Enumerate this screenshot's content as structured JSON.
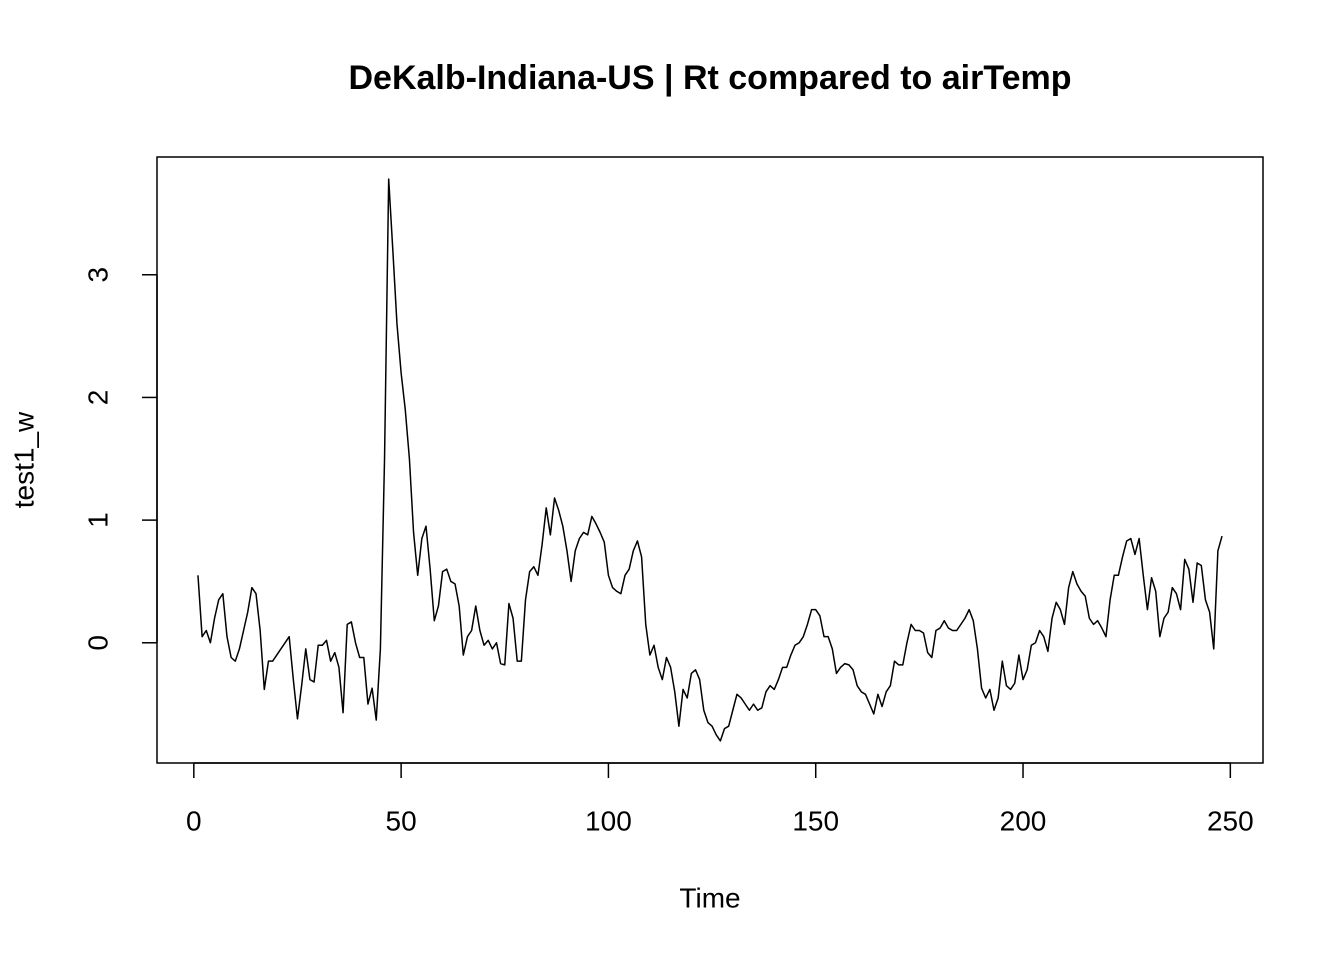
{
  "chart_data": {
    "type": "line",
    "title": "DeKalb-Indiana-US | Rt compared to airTemp",
    "xlabel": "Time",
    "ylabel": "test1_w",
    "color": "#000000",
    "x": [
      1,
      2,
      3,
      4,
      5,
      6,
      7,
      8,
      9,
      10,
      11,
      12,
      13,
      14,
      15,
      16,
      17,
      18,
      19,
      20,
      21,
      22,
      23,
      24,
      25,
      26,
      27,
      28,
      29,
      30,
      31,
      32,
      33,
      34,
      35,
      36,
      37,
      38,
      39,
      40,
      41,
      42,
      43,
      44,
      45,
      46,
      47,
      48,
      49,
      50,
      51,
      52,
      53,
      54,
      55,
      56,
      57,
      58,
      59,
      60,
      61,
      62,
      63,
      64,
      65,
      66,
      67,
      68,
      69,
      70,
      71,
      72,
      73,
      74,
      75,
      76,
      77,
      78,
      79,
      80,
      81,
      82,
      83,
      84,
      85,
      86,
      87,
      88,
      89,
      90,
      91,
      92,
      93,
      94,
      95,
      96,
      97,
      98,
      99,
      100,
      101,
      102,
      103,
      104,
      105,
      106,
      107,
      108,
      109,
      110,
      111,
      112,
      113,
      114,
      115,
      116,
      117,
      118,
      119,
      120,
      121,
      122,
      123,
      124,
      125,
      126,
      127,
      128,
      129,
      130,
      131,
      132,
      133,
      134,
      135,
      136,
      137,
      138,
      139,
      140,
      141,
      142,
      143,
      144,
      145,
      146,
      147,
      148,
      149,
      150,
      151,
      152,
      153,
      154,
      155,
      156,
      157,
      158,
      159,
      160,
      161,
      162,
      163,
      164,
      165,
      166,
      167,
      168,
      169,
      170,
      171,
      172,
      173,
      174,
      175,
      176,
      177,
      178,
      179,
      180,
      181,
      182,
      183,
      184,
      185,
      186,
      187,
      188,
      189,
      190,
      191,
      192,
      193,
      194,
      195,
      196,
      197,
      198,
      199,
      200,
      201,
      202,
      203,
      204,
      205,
      206,
      207,
      208,
      209,
      210,
      211,
      212,
      213,
      214,
      215,
      216,
      217,
      218,
      219,
      220,
      221,
      222,
      223,
      224,
      225,
      226,
      227,
      228,
      229,
      230,
      231,
      232,
      233,
      234,
      235,
      236,
      237,
      238,
      239,
      240,
      241,
      242,
      243,
      244,
      245,
      246,
      247,
      248
    ],
    "values": [
      0.55,
      0.05,
      0.1,
      0.0,
      0.2,
      0.35,
      0.4,
      0.05,
      -0.12,
      -0.15,
      -0.05,
      0.1,
      0.25,
      0.45,
      0.4,
      0.1,
      -0.38,
      -0.15,
      -0.15,
      -0.1,
      -0.05,
      0.0,
      0.05,
      -0.3,
      -0.62,
      -0.35,
      -0.05,
      -0.3,
      -0.32,
      -0.02,
      -0.02,
      0.02,
      -0.15,
      -0.08,
      -0.2,
      -0.57,
      0.15,
      0.17,
      0.0,
      -0.12,
      -0.12,
      -0.5,
      -0.37,
      -0.63,
      -0.05,
      1.5,
      3.78,
      3.2,
      2.6,
      2.2,
      1.9,
      1.5,
      0.9,
      0.55,
      0.85,
      0.95,
      0.6,
      0.18,
      0.3,
      0.58,
      0.6,
      0.5,
      0.48,
      0.3,
      -0.1,
      0.05,
      0.1,
      0.3,
      0.1,
      -0.02,
      0.02,
      -0.05,
      0.0,
      -0.17,
      -0.18,
      0.32,
      0.2,
      -0.15,
      -0.15,
      0.35,
      0.58,
      0.62,
      0.55,
      0.8,
      1.1,
      0.88,
      1.18,
      1.08,
      0.95,
      0.75,
      0.5,
      0.75,
      0.85,
      0.9,
      0.88,
      1.03,
      0.97,
      0.9,
      0.82,
      0.55,
      0.45,
      0.42,
      0.4,
      0.55,
      0.6,
      0.75,
      0.83,
      0.7,
      0.15,
      -0.1,
      -0.02,
      -0.2,
      -0.3,
      -0.12,
      -0.2,
      -0.4,
      -0.68,
      -0.38,
      -0.45,
      -0.25,
      -0.22,
      -0.3,
      -0.55,
      -0.65,
      -0.68,
      -0.75,
      -0.8,
      -0.7,
      -0.68,
      -0.55,
      -0.42,
      -0.45,
      -0.5,
      -0.55,
      -0.5,
      -0.55,
      -0.53,
      -0.4,
      -0.35,
      -0.38,
      -0.3,
      -0.2,
      -0.2,
      -0.1,
      -0.02,
      0.0,
      0.05,
      0.15,
      0.27,
      0.27,
      0.22,
      0.05,
      0.05,
      -0.05,
      -0.25,
      -0.2,
      -0.17,
      -0.18,
      -0.22,
      -0.35,
      -0.4,
      -0.42,
      -0.5,
      -0.58,
      -0.42,
      -0.52,
      -0.4,
      -0.35,
      -0.15,
      -0.18,
      -0.18,
      0.0,
      0.15,
      0.1,
      0.1,
      0.08,
      -0.08,
      -0.12,
      0.1,
      0.12,
      0.18,
      0.12,
      0.1,
      0.1,
      0.15,
      0.2,
      0.27,
      0.18,
      -0.05,
      -0.37,
      -0.45,
      -0.38,
      -0.55,
      -0.45,
      -0.15,
      -0.35,
      -0.38,
      -0.33,
      -0.1,
      -0.3,
      -0.22,
      -0.02,
      0.0,
      0.1,
      0.05,
      -0.07,
      0.2,
      0.33,
      0.27,
      0.15,
      0.45,
      0.58,
      0.48,
      0.42,
      0.38,
      0.2,
      0.15,
      0.18,
      0.12,
      0.05,
      0.35,
      0.55,
      0.55,
      0.7,
      0.83,
      0.85,
      0.72,
      0.85,
      0.55,
      0.27,
      0.53,
      0.42,
      0.05,
      0.2,
      0.25,
      0.45,
      0.4,
      0.27,
      0.68,
      0.6,
      0.33,
      0.65,
      0.63,
      0.35,
      0.25,
      -0.05,
      0.75,
      0.87
    ],
    "xlim": [
      -8.88,
      257.88
    ],
    "ylim": [
      -0.98,
      3.96
    ],
    "xticks": [
      0,
      50,
      100,
      150,
      200,
      250
    ],
    "yticks": [
      0,
      1,
      2,
      3
    ]
  }
}
